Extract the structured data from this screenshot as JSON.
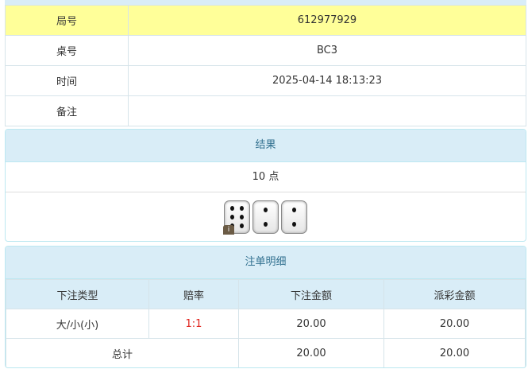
{
  "info": {
    "rows": [
      {
        "label": "局号",
        "value": "612977929"
      },
      {
        "label": "桌号",
        "value": "BC3"
      },
      {
        "label": "时间",
        "value": "2025-04-14 18:13:23"
      },
      {
        "label": "备注",
        "value": ""
      }
    ]
  },
  "result": {
    "title": "结果",
    "points": "10 点",
    "dice": [
      6,
      2,
      2
    ],
    "info_badge": "i"
  },
  "bets": {
    "title": "注单明细",
    "headers": [
      "下注类型",
      "赔率",
      "下注金额",
      "派彩金额"
    ],
    "rows": [
      {
        "type": "大/小(小)",
        "odds": "1:1",
        "amount": "20.00",
        "payout": "20.00"
      }
    ],
    "total": {
      "label": "总计",
      "amount": "20.00",
      "payout": "20.00"
    }
  },
  "colors": {
    "header_bg": "#d9edf7",
    "header_text": "#31708f",
    "highlight_row": "#ffff99",
    "odds": "#e0201a"
  }
}
